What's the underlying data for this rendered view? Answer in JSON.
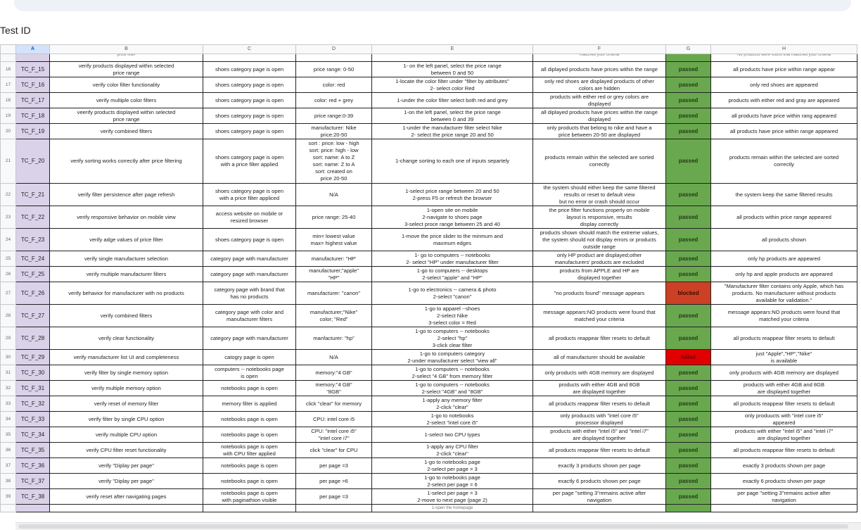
{
  "name_box": "Test ID",
  "columns": [
    "A",
    "B",
    "C",
    "D",
    "E",
    "F",
    "G",
    "H"
  ],
  "status_colors": {
    "passed": "#6aa84f",
    "blocked": "#cc4125",
    "failed": "#e00000"
  },
  "top_partial": {
    "b": "price filter",
    "f": "matched your criteria",
    "h": "No products were found that matched your criteria"
  },
  "rows": [
    {
      "n": "16",
      "id": "TC_F_15",
      "title": "verify  products displayed within selected\nprice range",
      "pre": "shoes category page is open",
      "data": "price range: 0-50",
      "steps": "1- on the left panel, select the price range\nbetween 0 and 50",
      "expected": "all diplayed products have prices within the range",
      "status": "passed",
      "actual": "all products have price within range appear"
    },
    {
      "n": "17",
      "id": "TC_F_16",
      "title": "verify color filter functionality",
      "pre": "shoes category page is open",
      "data": "color: red",
      "steps": "1-locate the color filter under \"filter by attributes\"\n2- select color Red",
      "expected": "only red shoes are displayed products of other\ncolors are hidden",
      "status": "passed",
      "actual": "only red shoes are appeared"
    },
    {
      "n": "18",
      "id": "TC_F_17",
      "title": "verify multiple color filters",
      "pre": "shoes category page is open",
      "data": "color: red + grey",
      "steps": "1-under the color filter select both red and grey",
      "expected": "products with either red or grey colors are\ndisplayed",
      "status": "passed",
      "actual": "products with either red and gray are appeared"
    },
    {
      "n": "19",
      "id": "TC_F_18",
      "title": "veerify products displayed within selected\nprice range",
      "pre": "shoes category page is open",
      "data": "price range:0-39",
      "steps": "1-on the left panel, select the price range\nbetween 0 and 39",
      "expected": "all diplayed products have prices within the range\ndisplayed",
      "status": "passed",
      "actual": "all products have price within rang appeared"
    },
    {
      "n": "20",
      "id": "TC_F_19",
      "title": "verify combined filters",
      "pre": "shoes category page is open",
      "data": "manufacturer: Nike\nprice:20-50",
      "steps": "1-under the manufacturer filter select Nike\n2- select the price range 20 and 50",
      "expected": "only products that belong to nike and have a\nprice between 20-50 are displayed",
      "status": "passed",
      "actual": "all products have price within range appeared"
    },
    {
      "n": "21",
      "id": "TC_F_20",
      "title": "verify sorting works correctly after price filtering",
      "pre": "shoes category page is open\nwith a price filter applied",
      "data": "sort : price: low - high\nsort: price: high - low\nsort:  name: A to Z\nsort: name: Z to A\nsort: created on\nprice 20-50",
      "steps": "1-change sorting to each one of inputs separtely",
      "expected": "products remain within the selected are sorted\ncorrectly",
      "status": "passed",
      "actual": "products remain within the selected are sorted\ncorrectly"
    },
    {
      "n": "22",
      "id": "TC_F_21",
      "title": "verify filter persistence after page refresh",
      "pre": "shoes category page is open\nwith a price filter appliced",
      "data": "N/A",
      "steps": "1-select price range between 20 and 50\n2-press F5 or refresh the browser",
      "expected": "the system should either keep the same filtered\nresults or reset to default view\nbut no error or crash should occur",
      "status": "passed",
      "actual": "the system keep the same filtered results"
    },
    {
      "n": "23",
      "id": "TC_F_22",
      "title": "verify responsive behavior on mobile view",
      "pre": "access website on mobile or\nresized browser",
      "data": "price range: 25-40",
      "steps": "1-open site on mobile\n2-navigate to shoes page\n3-select proce range between 25 and 40",
      "expected": "the price filter functions properly on mobile\nlayout is responsive, results\ndisplay correctly",
      "status": "passed",
      "actual": "all products within price range appeared"
    },
    {
      "n": "24",
      "id": "TC_F_23",
      "title": "verify adge values of price filter",
      "pre": "shoes category page is open",
      "data": "min= lowest value\nmax= highest value",
      "steps": "1-move the price slider to the minmum and\nmaxmum edges",
      "expected": "products shown should match the extreme values,\nthe system should not display errors or products\noutside range",
      "status": "passed",
      "actual": "all products shown"
    },
    {
      "n": "25",
      "id": "TC_F_24",
      "title": "verify single manufacturer selection",
      "pre": "category page with manufacturer",
      "data": "manufacturer: \"HP'",
      "steps": "1- go to computers -- notebooks\n2- select \"HP\" under manufacturer filter",
      "expected": "only HP product are displayed;other\nmanufacturers' products are excluded",
      "status": "passed",
      "actual": "only hp products are appeared"
    },
    {
      "n": "26",
      "id": "TC_F_25",
      "title": "verify multiple manufacturer  filters",
      "pre": "category page with manufacturer",
      "data": "manufacturer;\"apple\"\n\"HP\"",
      "steps": "1-go to computers -- desktops\n2-select \"apple\" and \"HP\"",
      "expected": "products from APPLE and HP are\ndisplayed together",
      "status": "passed",
      "actual": "only hp and apple products are appeared"
    },
    {
      "n": "27",
      "id": "TC_F_26",
      "title": "verify behavior for manufacturer with no products",
      "pre": "category page with brand that\nhas no products",
      "data": "manufacturer: \"canon\"",
      "steps": "1-go to electronics -- camera & photo\n2-select \"canon\"",
      "expected": "\"no products found\" message appears",
      "status": "blocked",
      "actual": "\"Manufacturer filter contains only Apple, which has\nproducts. No manufacturer without products\navailable for validation.\""
    },
    {
      "n": "28",
      "id": "TC_F_27",
      "title": "verify combined filters",
      "pre": "category page with color and\nmanufacturer filters",
      "data": "manufacturer;\"Nike\"\ncolor; \"Red\"",
      "steps": "1-go to apparel --shoes\n2-select Nike\n3-select color = Red",
      "expected": "message appears:NO products were found that\nmatched your criteria",
      "status": "passed",
      "actual": "message appears:NO products were found that\nmatched your criteria"
    },
    {
      "n": "29",
      "id": "TC_F_28",
      "title": "verify clear functionality",
      "pre": "category page with manufacturer",
      "data": "manfacturer: \"hp\"",
      "steps": "1-go to computers -- notebooks\n2-select \"hp\"\n3-click clear filter",
      "expected": "all products reappear filter resets to default",
      "status": "passed",
      "actual": "all products reappear filter resets to default"
    },
    {
      "n": "30",
      "id": "TC_F_29",
      "title": "verify manufacturer list UI and completeness",
      "pre": "catogry page is open",
      "data": "N/A",
      "steps": "1-go to computers category\n2-under manufacturer select \"view all\"",
      "expected": "all of manufacturer should be available",
      "status": "failed",
      "actual": "just \"Apple\",\"HP\",\"Nike\"\nis available"
    },
    {
      "n": "31",
      "id": "TC_F_30",
      "title": "verify filter by single memory option",
      "pre": "computers -- notebooks page\nis open",
      "data": "memory:\"4 GB\"",
      "steps": "1-go to computers -- notebooks\n2-select \"4 GB\" from memory filter",
      "expected": "only products with  4GB  memory are displayed",
      "status": "passed",
      "actual": "only products with  4GB  memory are displayed"
    },
    {
      "n": "32",
      "id": "TC_F_31",
      "title": "verify multiple memory option",
      "pre": "notebooks page is open",
      "data": "memory:\"4 GB\"\n\"8GB\"",
      "steps": "1-go to computers -- notebooks\n2-select \"4GB\" and \"8GB\"",
      "expected": "products with either 4GB  and  8GB\nare displayed together",
      "status": "passed",
      "actual": "products with either 4GB  and  8GB\nare displayed together"
    },
    {
      "n": "33",
      "id": "TC_F_32",
      "title": "verify reset of memory filter",
      "pre": "memory filter is applied",
      "data": "click \"clear\" for memory",
      "steps": "1-apply any memory filter\n2-click \"clear\"",
      "expected": "all products reappear filter resets to default",
      "status": "passed",
      "actual": "all products reappear filter resets to default"
    },
    {
      "n": "34",
      "id": "TC_F_33",
      "title": "verify filter by single CPU option",
      "pre": "notebooks page is open",
      "data": "CPU: intel core i5",
      "steps": "1-go to notebooks\n2-select \"intel core i5\"",
      "expected": "only produucts with \"intel core i5\"\nprocessor displayed",
      "status": "passed",
      "actual": "only produucts with \"intel core i5\"\nappeared"
    },
    {
      "n": "35",
      "id": "TC_F_34",
      "title": "verify multiple CPU option",
      "pre": "notebooks page is open",
      "data": "CPU: \"intel core i5\"\n\"intel core i7\"",
      "steps": "1-select two CPU types",
      "expected": "products with either \"intel i5\" and  \"intel i7\"\nare displayed together",
      "status": "passed",
      "actual": "products with either \"intel i5\" and  \"intel i7\"\nare displayed together"
    },
    {
      "n": "36",
      "id": "TC_F_35",
      "title": "verify CPU filter reset functionality",
      "pre": "notebooks page is open\nwith CPU filter applied",
      "data": "click \"clear\" for CPU",
      "steps": "1-apply any CPU filter\n2-click \"clear\"",
      "expected": "all products reappear filter resets to default",
      "status": "passed",
      "actual": "all products reappear filter resets to default"
    },
    {
      "n": "37",
      "id": "TC_F_36",
      "title": "verify \"Diplay per page\"",
      "pre": "notebooks page is open",
      "data": "per page =3",
      "steps": "1-go to notebooks page\n2-select per page = 3",
      "expected": "exactly 3 products shown per page",
      "status": "passed",
      "actual": "exactly 3 products shown per page"
    },
    {
      "n": "38",
      "id": "TC_F_37",
      "title": "verify \"Diplay per page\"",
      "pre": "notebooks page is open",
      "data": "per page =6",
      "steps": "1-go to notebooks page\n2-select per page = 6",
      "expected": "exactly 6 products shown per page",
      "status": "passed",
      "actual": "exactly 6 products shown per page"
    },
    {
      "n": "39",
      "id": "TC_F_38",
      "title": "verify reset after navigating pages",
      "pre": "notebooks page is open\nwith paginathion visible",
      "data": "per page =3",
      "steps": "1-select per page = 3\n2-move to next page (page 2)",
      "expected": "per page \"setting 3\"remains active after\nnavigation",
      "status": "passed",
      "actual": "per page \"setting 3\"remains active after\nnavigation"
    }
  ],
  "bottom_partial": {
    "e": "1-open the homepage"
  }
}
